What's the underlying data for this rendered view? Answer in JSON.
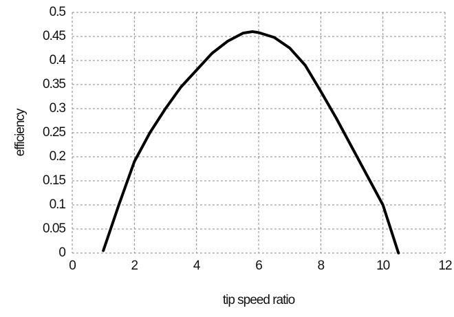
{
  "chart_data": {
    "type": "line",
    "xlabel": "tip speed ratio",
    "ylabel": "efficiency",
    "x": [
      1,
      1.5,
      2,
      2.5,
      3,
      3.5,
      4,
      4.5,
      5,
      5.5,
      5.8,
      6,
      6.5,
      7,
      7.5,
      8,
      8.5,
      9,
      9.5,
      10,
      10.5
    ],
    "series": [
      {
        "color": "#000000",
        "values": [
          0.005,
          0.1,
          0.19,
          0.25,
          0.3,
          0.345,
          0.38,
          0.415,
          0.44,
          0.457,
          0.46,
          0.458,
          0.448,
          0.426,
          0.39,
          0.336,
          0.28,
          0.22,
          0.16,
          0.1,
          0
        ]
      }
    ],
    "xlim": [
      0,
      12
    ],
    "xticks": [
      0,
      2,
      4,
      6,
      8,
      10,
      12
    ],
    "ylim": [
      0,
      0.5
    ],
    "yticks": [
      0,
      0.05,
      0.1,
      0.15,
      0.2,
      0.25,
      0.3,
      0.35,
      0.4,
      0.45,
      0.5
    ],
    "grid": true
  }
}
